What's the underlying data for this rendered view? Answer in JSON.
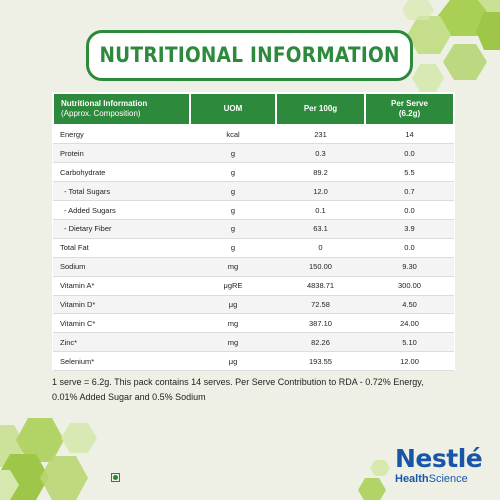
{
  "title": "NUTRITIONAL INFORMATION",
  "table": {
    "headers": {
      "nutrient": "Nutritional Information",
      "nutrient_sub": "(Approx. Composition)",
      "uom": "UOM",
      "per100": "Per 100g",
      "perserve": "Per Serve",
      "perserve_sub": "(6.2g)"
    },
    "rows": [
      {
        "name": "Energy",
        "uom": "kcal",
        "per100": "231",
        "perserve": "14"
      },
      {
        "name": "Protein",
        "uom": "g",
        "per100": "0.3",
        "perserve": "0.0"
      },
      {
        "name": "Carbohydrate",
        "uom": "g",
        "per100": "89.2",
        "perserve": "5.5"
      },
      {
        "name": "- Total Sugars",
        "uom": "g",
        "per100": "12.0",
        "perserve": "0.7"
      },
      {
        "name": "- Added Sugars",
        "uom": "g",
        "per100": "0.1",
        "perserve": "0.0"
      },
      {
        "name": "- Dietary Fiber",
        "uom": "g",
        "per100": "63.1",
        "perserve": "3.9"
      },
      {
        "name": "Total Fat",
        "uom": "g",
        "per100": "0",
        "perserve": "0.0"
      },
      {
        "name": "Sodium",
        "uom": "mg",
        "per100": "150.00",
        "perserve": "9.30"
      },
      {
        "name": "Vitamin A*",
        "uom": "μgRE",
        "per100": "4838.71",
        "perserve": "300.00"
      },
      {
        "name": "Vitamin D*",
        "uom": "μg",
        "per100": "72.58",
        "perserve": "4.50"
      },
      {
        "name": "Vitamin C*",
        "uom": "mg",
        "per100": "387.10",
        "perserve": "24.00"
      },
      {
        "name": "Zinc*",
        "uom": "mg",
        "per100": "82.26",
        "perserve": "5.10"
      },
      {
        "name": "Selenium*",
        "uom": "μg",
        "per100": "193.55",
        "perserve": "12.00"
      }
    ]
  },
  "note_line1": "1 serve = 6.2g. This pack contains 14 serves. Per Serve Contribution to RDA - 0.72% Energy,",
  "note_line2": "0.01% Added Sugar and 0.5% Sodium",
  "brand": {
    "name": "Nestlé",
    "sub_bold": "Health",
    "sub_rest": "Science"
  },
  "colors": {
    "accent": "#2d8a3c",
    "brand": "#1a56a8",
    "background": "#eef0e6",
    "hex_light": "#c5de8c",
    "hex_mid": "#a9cf55"
  }
}
